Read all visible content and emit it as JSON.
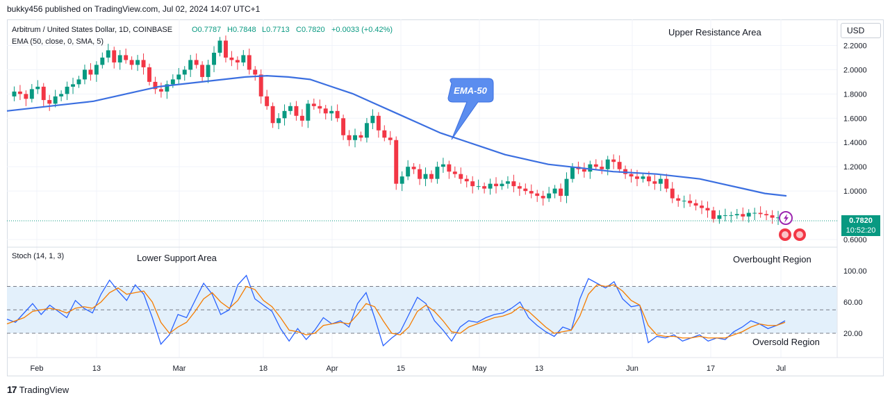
{
  "header": {
    "published": "bukky456 published on TradingView.com, Jul 02, 2024 14:07 UTC+1"
  },
  "symbol_line": {
    "name": "Arbitrum / United States Dollar, 1D, COINBASE",
    "open": "O0.7787",
    "high": "H0.7848",
    "low": "L0.7713",
    "close": "C0.7820",
    "change": "+0.0033 (+0.42%)"
  },
  "ema_legend": "EMA (50, close, 0, SMA, 5)",
  "stoch_legend": "Stoch (14, 1, 3)",
  "currency": "USD",
  "last_price": {
    "value": "0.7820",
    "countdown": "10:52:20"
  },
  "annotations": {
    "upper_resistance": "Upper Resistance Area",
    "ema_callout": "EMA-50",
    "lower_support": "Lower Support Area",
    "overbought": "Overbought Region",
    "oversold": "Oversold Region"
  },
  "footer": {
    "brand": "TradingView"
  },
  "colors": {
    "up": "#089981",
    "down": "#f23645",
    "ema": "#3b6fe0",
    "stoch_k": "#2962ff",
    "stoch_d": "#f57c00",
    "band": "#e3f0fb"
  },
  "chart_data": [
    {
      "type": "candlestick",
      "title": "Arbitrum / United States Dollar, 1D, COINBASE",
      "y_ticks": [
        "2.2000",
        "2.0000",
        "1.8000",
        "1.6000",
        "1.4000",
        "1.2000",
        "1.0000",
        "0.6000"
      ],
      "x_ticks": [
        "Feb",
        "13",
        "Mar",
        "18",
        "Apr",
        "15",
        "May",
        "13",
        "Jun",
        "17",
        "Jul"
      ],
      "ylim": [
        0.58,
        2.32
      ],
      "close_series": [
        1.78,
        1.82,
        1.8,
        1.76,
        1.84,
        1.86,
        1.75,
        1.72,
        1.78,
        1.8,
        1.86,
        1.88,
        1.92,
        2.0,
        1.96,
        2.04,
        2.1,
        2.16,
        2.06,
        2.12,
        2.08,
        2.04,
        2.08,
        2.02,
        1.9,
        1.84,
        1.82,
        1.88,
        1.92,
        1.96,
        2.0,
        2.08,
        2.04,
        1.94,
        2.04,
        2.14,
        2.24,
        2.1,
        2.08,
        2.06,
        2.12,
        2.0,
        1.96,
        1.78,
        1.7,
        1.56,
        1.6,
        1.66,
        1.7,
        1.62,
        1.58,
        1.72,
        1.7,
        1.68,
        1.64,
        1.66,
        1.6,
        1.46,
        1.42,
        1.46,
        1.44,
        1.56,
        1.62,
        1.5,
        1.44,
        1.42,
        1.06,
        1.12,
        1.2,
        1.18,
        1.1,
        1.14,
        1.1,
        1.2,
        1.22,
        1.16,
        1.14,
        1.1,
        1.08,
        1.04,
        1.04,
        1.02,
        1.06,
        1.04,
        1.06,
        1.08,
        1.04,
        1.02,
        1.0,
        0.98,
        0.96,
        0.94,
        0.98,
        1.02,
        0.96,
        1.1,
        1.2,
        1.18,
        1.16,
        1.22,
        1.2,
        1.18,
        1.26,
        1.24,
        1.18,
        1.14,
        1.12,
        1.1,
        1.12,
        1.08,
        1.06,
        1.1,
        1.02,
        0.94,
        0.92,
        0.92,
        0.9,
        0.88,
        0.86,
        0.84,
        0.77,
        0.8,
        0.8,
        0.8,
        0.81,
        0.79,
        0.82,
        0.82,
        0.81,
        0.8,
        0.78,
        0.782
      ],
      "ema50": [
        1.66,
        1.68,
        1.7,
        1.72,
        1.74,
        1.78,
        1.82,
        1.86,
        1.88,
        1.9,
        1.92,
        1.94,
        1.95,
        1.94,
        1.92,
        1.86,
        1.8,
        1.72,
        1.64,
        1.56,
        1.48,
        1.42,
        1.36,
        1.3,
        1.26,
        1.22,
        1.2,
        1.18,
        1.16,
        1.15,
        1.14,
        1.12,
        1.1,
        1.06,
        1.02,
        0.98,
        0.96
      ],
      "last_value": 0.782
    },
    {
      "type": "line",
      "title": "Stoch (14, 1, 3)",
      "y_ticks": [
        "100.00",
        "60.00",
        "20.00"
      ],
      "ylim": [
        0,
        100
      ],
      "levels": [
        80,
        50,
        20
      ],
      "series": [
        {
          "values": [
            38,
            34,
            46,
            58,
            44,
            56,
            48,
            40,
            62,
            52,
            46,
            70,
            88,
            74,
            62,
            82,
            70,
            40,
            6,
            18,
            44,
            40,
            62,
            84,
            70,
            44,
            50,
            82,
            94,
            64,
            56,
            48,
            26,
            10,
            26,
            12,
            24,
            40,
            32,
            36,
            28,
            58,
            72,
            40,
            4,
            14,
            22,
            44,
            66,
            58,
            36,
            24,
            10,
            28,
            36,
            34,
            40,
            44,
            46,
            52,
            60,
            40,
            30,
            22,
            16,
            28,
            24,
            64,
            90,
            84,
            78,
            86,
            64,
            54,
            56,
            8,
            16,
            14,
            18,
            10,
            14,
            18,
            10,
            14,
            12,
            22,
            28,
            36,
            32,
            26,
            30,
            36
          ]
        },
        {
          "values": [
            32,
            36,
            40,
            48,
            50,
            52,
            50,
            46,
            52,
            54,
            52,
            60,
            72,
            78,
            70,
            72,
            74,
            60,
            34,
            20,
            28,
            34,
            48,
            64,
            72,
            60,
            52,
            62,
            80,
            76,
            62,
            54,
            40,
            24,
            22,
            18,
            20,
            30,
            32,
            34,
            32,
            44,
            58,
            54,
            36,
            20,
            18,
            28,
            48,
            56,
            48,
            36,
            22,
            20,
            28,
            32,
            36,
            40,
            42,
            46,
            54,
            48,
            38,
            28,
            20,
            22,
            24,
            42,
            70,
            82,
            80,
            82,
            74,
            62,
            56,
            30,
            18,
            16,
            16,
            14,
            14,
            16,
            14,
            14,
            14,
            18,
            22,
            28,
            32,
            30,
            30,
            34
          ]
        }
      ]
    }
  ]
}
